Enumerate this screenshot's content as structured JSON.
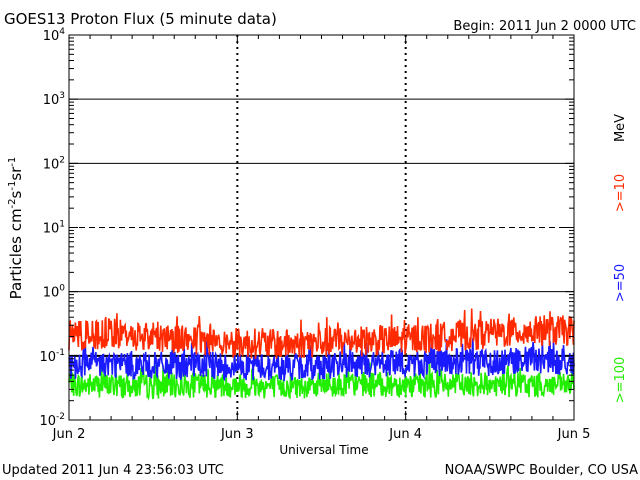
{
  "header": {
    "title": "GOES13 Proton Flux (5 minute data)",
    "begin": "Begin: 2011 Jun 2 0000 UTC"
  },
  "footer": {
    "updated": "Updated 2011 Jun  4 23:56:03 UTC",
    "credit": "NOAA/SWPC Boulder, CO USA"
  },
  "colors": {
    "ge10": "#ff2a00",
    "ge50": "#1a1aff",
    "ge100": "#22ee00"
  },
  "chart_data": {
    "type": "line",
    "title": "GOES13 Proton Flux (5 minute data)",
    "xlabel": "Universal Time",
    "ylabel_parts": [
      "Particles cm",
      "-2",
      "s",
      "-1",
      "sr",
      "-1"
    ],
    "y_scale": "log",
    "ylim": [
      0.01,
      10000
    ],
    "y_ticks": [
      {
        "value": 0.01,
        "base": "10",
        "exp": "-2"
      },
      {
        "value": 0.1,
        "base": "10",
        "exp": "-1"
      },
      {
        "value": 1,
        "base": "10",
        "exp": "0"
      },
      {
        "value": 10,
        "base": "10",
        "exp": "1"
      },
      {
        "value": 100,
        "base": "10",
        "exp": "2"
      },
      {
        "value": 1000,
        "base": "10",
        "exp": "3"
      },
      {
        "value": 10000,
        "base": "10",
        "exp": "4"
      }
    ],
    "x_ticks": [
      "Jun 2",
      "Jun 3",
      "Jun 4",
      "Jun 5"
    ],
    "xlim": [
      "2011-06-02",
      "2011-06-05"
    ],
    "grid": {
      "solid_levels": [
        1,
        100,
        1000
      ],
      "dashed_levels": [
        10
      ],
      "threshold_level": 0.1
    },
    "units_label": "MeV",
    "series": [
      {
        "name": ">=10",
        "color": "#ff2a00",
        "t": [
          0,
          0.25,
          0.5,
          0.75,
          1.0,
          1.25,
          1.5,
          1.75,
          2.0,
          2.25,
          2.5,
          2.75,
          3.0
        ],
        "y": [
          0.2,
          0.22,
          0.2,
          0.18,
          0.16,
          0.15,
          0.16,
          0.17,
          0.18,
          0.2,
          0.22,
          0.24,
          0.25
        ]
      },
      {
        "name": ">=50",
        "color": "#1a1aff",
        "t": [
          0,
          0.25,
          0.5,
          0.75,
          1.0,
          1.25,
          1.5,
          1.75,
          2.0,
          2.25,
          2.5,
          2.75,
          3.0
        ],
        "y": [
          0.07,
          0.075,
          0.07,
          0.07,
          0.07,
          0.065,
          0.07,
          0.075,
          0.075,
          0.08,
          0.08,
          0.085,
          0.08
        ]
      },
      {
        "name": ">=100",
        "color": "#22ee00",
        "t": [
          0,
          0.25,
          0.5,
          0.75,
          1.0,
          1.25,
          1.5,
          1.75,
          2.0,
          2.25,
          2.5,
          2.75,
          3.0
        ],
        "y": [
          0.035,
          0.035,
          0.033,
          0.035,
          0.035,
          0.033,
          0.035,
          0.036,
          0.035,
          0.035,
          0.036,
          0.035,
          0.035
        ]
      }
    ]
  }
}
